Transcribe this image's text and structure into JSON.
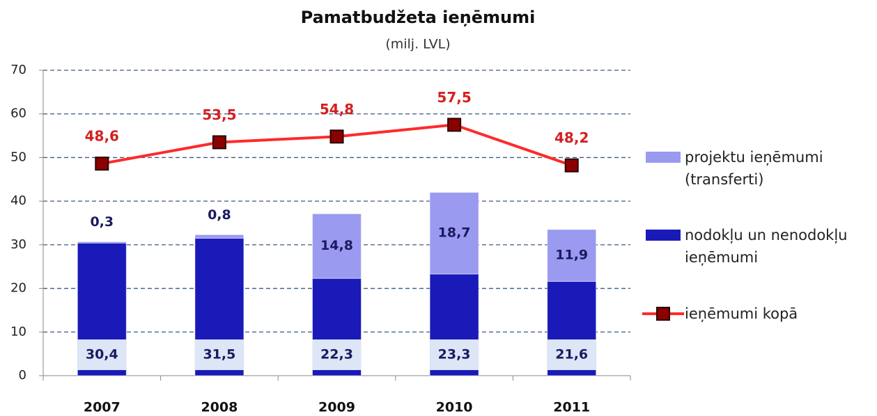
{
  "chart_data": {
    "type": "bar-line",
    "title": "Pamatbudžeta ieņēmumi",
    "subtitle": "(milj. LVL)",
    "categories": [
      "2007",
      "2008",
      "2009",
      "2010",
      "2011"
    ],
    "series": [
      {
        "name": "nodokļu un nenodokļu ieņēmumi",
        "type": "bar",
        "color": "#1a1ab8",
        "values": [
          30.4,
          31.5,
          22.3,
          23.3,
          21.6
        ],
        "value_labels": [
          "30,4",
          "31,5",
          "22,3",
          "23,3",
          "21,6"
        ]
      },
      {
        "name": "projektu ieņēmumi (transferti)",
        "type": "bar",
        "color": "#9a9af0",
        "values": [
          0.3,
          0.8,
          14.8,
          18.7,
          11.9
        ],
        "value_labels": [
          "0,3",
          "0,8",
          "14,8",
          "18,7",
          "11,9"
        ]
      },
      {
        "name": "ieņēmumi kopā",
        "type": "line",
        "color": "#ff2a2a",
        "values": [
          48.6,
          53.5,
          54.8,
          57.5,
          48.2
        ],
        "value_labels": [
          "48,6",
          "53,5",
          "54,8",
          "57,5",
          "48,2"
        ]
      }
    ],
    "ylim": [
      0,
      70
    ],
    "yticks": [
      0,
      10,
      20,
      30,
      40,
      50,
      60,
      70
    ],
    "grid": true,
    "legend": "right"
  }
}
